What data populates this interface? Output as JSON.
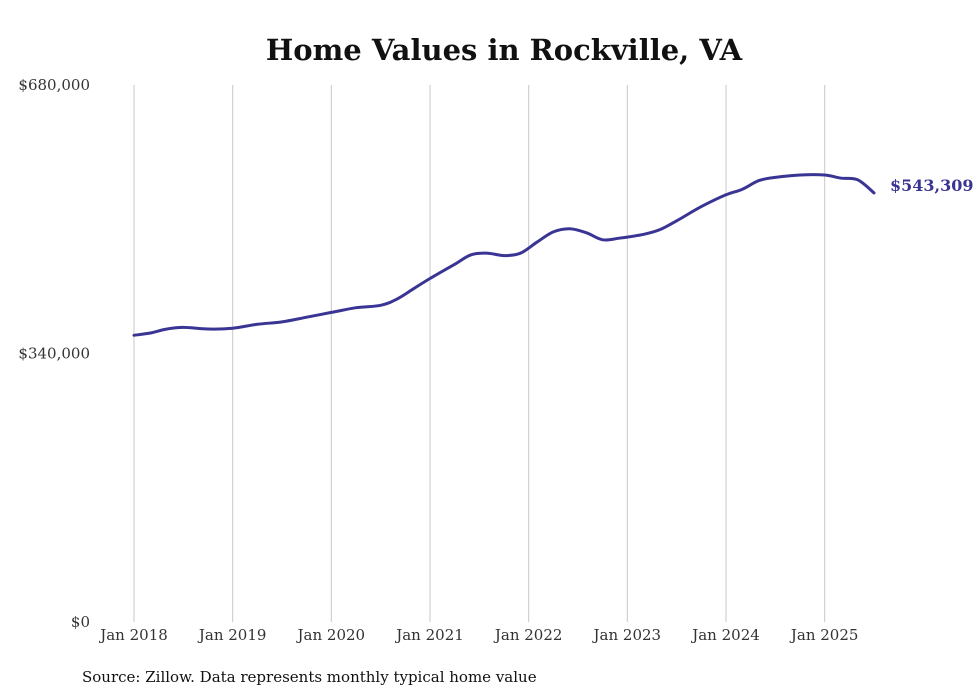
{
  "chart_data": {
    "type": "line",
    "title": "Home Values in Rockville, VA",
    "xlabel": "",
    "ylabel": "",
    "ylim": [
      0,
      680000
    ],
    "y_ticks": [
      {
        "value": 0,
        "label": "$0"
      },
      {
        "value": 340000,
        "label": "$340,000"
      },
      {
        "value": 680000,
        "label": "$680,000"
      }
    ],
    "x_ticks": [
      {
        "value": "2018-01",
        "label": "Jan 2018"
      },
      {
        "value": "2019-01",
        "label": "Jan 2019"
      },
      {
        "value": "2020-01",
        "label": "Jan 2020"
      },
      {
        "value": "2021-01",
        "label": "Jan 2021"
      },
      {
        "value": "2022-01",
        "label": "Jan 2022"
      },
      {
        "value": "2023-01",
        "label": "Jan 2023"
      },
      {
        "value": "2024-01",
        "label": "Jan 2024"
      },
      {
        "value": "2025-01",
        "label": "Jan 2025"
      }
    ],
    "x_range": [
      "2018-01",
      "2025-07"
    ],
    "grid": "vertical",
    "legend": "none",
    "series": [
      {
        "name": "",
        "color": "#3a3594",
        "end_label": "$543,309",
        "points": [
          {
            "x": "2018-01",
            "y": 363000
          },
          {
            "x": "2018-03",
            "y": 366000
          },
          {
            "x": "2018-05",
            "y": 371000
          },
          {
            "x": "2018-07",
            "y": 373000
          },
          {
            "x": "2018-10",
            "y": 371000
          },
          {
            "x": "2019-01",
            "y": 372000
          },
          {
            "x": "2019-04",
            "y": 377000
          },
          {
            "x": "2019-07",
            "y": 380000
          },
          {
            "x": "2019-10",
            "y": 386000
          },
          {
            "x": "2020-01",
            "y": 392000
          },
          {
            "x": "2020-04",
            "y": 398000
          },
          {
            "x": "2020-07",
            "y": 401000
          },
          {
            "x": "2020-09",
            "y": 409000
          },
          {
            "x": "2020-11",
            "y": 422000
          },
          {
            "x": "2021-01",
            "y": 435000
          },
          {
            "x": "2021-04",
            "y": 453000
          },
          {
            "x": "2021-06",
            "y": 465000
          },
          {
            "x": "2021-08",
            "y": 467000
          },
          {
            "x": "2021-10",
            "y": 464000
          },
          {
            "x": "2021-12",
            "y": 467000
          },
          {
            "x": "2022-02",
            "y": 481000
          },
          {
            "x": "2022-04",
            "y": 494000
          },
          {
            "x": "2022-06",
            "y": 498000
          },
          {
            "x": "2022-08",
            "y": 493000
          },
          {
            "x": "2022-10",
            "y": 484000
          },
          {
            "x": "2022-12",
            "y": 486000
          },
          {
            "x": "2023-03",
            "y": 491000
          },
          {
            "x": "2023-05",
            "y": 497000
          },
          {
            "x": "2023-07",
            "y": 508000
          },
          {
            "x": "2023-10",
            "y": 526000
          },
          {
            "x": "2024-01",
            "y": 541000
          },
          {
            "x": "2024-03",
            "y": 548000
          },
          {
            "x": "2024-05",
            "y": 559000
          },
          {
            "x": "2024-07",
            "y": 563000
          },
          {
            "x": "2024-10",
            "y": 566000
          },
          {
            "x": "2025-01",
            "y": 566000
          },
          {
            "x": "2025-03",
            "y": 562000
          },
          {
            "x": "2025-05",
            "y": 560000
          },
          {
            "x": "2025-07",
            "y": 543309
          }
        ]
      }
    ]
  },
  "source_note": "Source: Zillow. Data represents monthly typical home value"
}
